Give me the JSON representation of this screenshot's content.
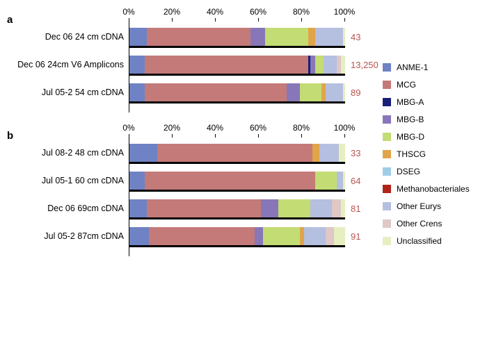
{
  "axis": {
    "ticks": [
      0,
      20,
      40,
      60,
      80,
      100
    ],
    "format_suffix": "%"
  },
  "colors": {
    "ANME-1": "#6e82c4",
    "MCG": "#c47a78",
    "MBG-A": "#1a1f7a",
    "MBG-B": "#8877b8",
    "MBG-D": "#c3dc74",
    "THSCG": "#e0a44a",
    "DSEG": "#9fcde6",
    "Methanobacteriales": "#b02418",
    "Other Eurys": "#b5bfe0",
    "Other Crens": "#e0c8c6",
    "Unclassified": "#e6efc0"
  },
  "legend_order": [
    "ANME-1",
    "MCG",
    "MBG-A",
    "MBG-B",
    "MBG-D",
    "THSCG",
    "DSEG",
    "Methanobacteriales",
    "Other Eurys",
    "Other Crens",
    "Unclassified"
  ],
  "panels": [
    {
      "label": "a",
      "rows": [
        {
          "label": "Dec 06 24 cm cDNA",
          "count": "43",
          "segments": [
            {
              "key": "ANME-1",
              "pct": 8
            },
            {
              "key": "MCG",
              "pct": 48
            },
            {
              "key": "MBG-B",
              "pct": 7
            },
            {
              "key": "MBG-D",
              "pct": 20
            },
            {
              "key": "THSCG",
              "pct": 3
            },
            {
              "key": "Other Eurys",
              "pct": 13
            },
            {
              "key": "Unclassified",
              "pct": 1
            }
          ]
        },
        {
          "label": "Dec 06 24cm V6 Amplicons",
          "count": "13,250",
          "segments": [
            {
              "key": "ANME-1",
              "pct": 7
            },
            {
              "key": "MCG",
              "pct": 76
            },
            {
              "key": "MBG-A",
              "pct": 1
            },
            {
              "key": "MBG-B",
              "pct": 2
            },
            {
              "key": "MBG-D",
              "pct": 4
            },
            {
              "key": "Other Eurys",
              "pct": 6
            },
            {
              "key": "Other Crens",
              "pct": 2
            },
            {
              "key": "Unclassified",
              "pct": 2
            }
          ]
        },
        {
          "label": "Jul 05-2 54 cm cDNA",
          "count": "89",
          "segments": [
            {
              "key": "ANME-1",
              "pct": 7
            },
            {
              "key": "MCG",
              "pct": 66
            },
            {
              "key": "MBG-B",
              "pct": 6
            },
            {
              "key": "MBG-D",
              "pct": 10
            },
            {
              "key": "THSCG",
              "pct": 2
            },
            {
              "key": "Other Eurys",
              "pct": 8
            },
            {
              "key": "Unclassified",
              "pct": 1
            }
          ]
        }
      ]
    },
    {
      "label": "b",
      "rows": [
        {
          "label": "Jul 08-2 48 cm cDNA",
          "count": "33",
          "segments": [
            {
              "key": "ANME-1",
              "pct": 13
            },
            {
              "key": "MCG",
              "pct": 72
            },
            {
              "key": "THSCG",
              "pct": 3
            },
            {
              "key": "Other Eurys",
              "pct": 9
            },
            {
              "key": "Unclassified",
              "pct": 3
            }
          ]
        },
        {
          "label": "Jul 05-1 60 cm cDNA",
          "count": "64",
          "segments": [
            {
              "key": "ANME-1",
              "pct": 7
            },
            {
              "key": "MCG",
              "pct": 79
            },
            {
              "key": "MBG-D",
              "pct": 10
            },
            {
              "key": "Other Eurys",
              "pct": 3
            },
            {
              "key": "Unclassified",
              "pct": 1
            }
          ]
        },
        {
          "label": "Dec 06 69cm cDNA",
          "count": "81",
          "segments": [
            {
              "key": "ANME-1",
              "pct": 8
            },
            {
              "key": "MCG",
              "pct": 53
            },
            {
              "key": "MBG-B",
              "pct": 8
            },
            {
              "key": "MBG-D",
              "pct": 15
            },
            {
              "key": "Other Eurys",
              "pct": 10
            },
            {
              "key": "Other Crens",
              "pct": 4
            },
            {
              "key": "Unclassified",
              "pct": 2
            }
          ]
        },
        {
          "label": "Jul 05-2 87cm cDNA",
          "count": "91",
          "segments": [
            {
              "key": "ANME-1",
              "pct": 9
            },
            {
              "key": "MCG",
              "pct": 49
            },
            {
              "key": "MBG-B",
              "pct": 4
            },
            {
              "key": "MBG-D",
              "pct": 17
            },
            {
              "key": "THSCG",
              "pct": 2
            },
            {
              "key": "Other Eurys",
              "pct": 10
            },
            {
              "key": "Other Crens",
              "pct": 4
            },
            {
              "key": "Unclassified",
              "pct": 5
            }
          ]
        }
      ]
    }
  ]
}
